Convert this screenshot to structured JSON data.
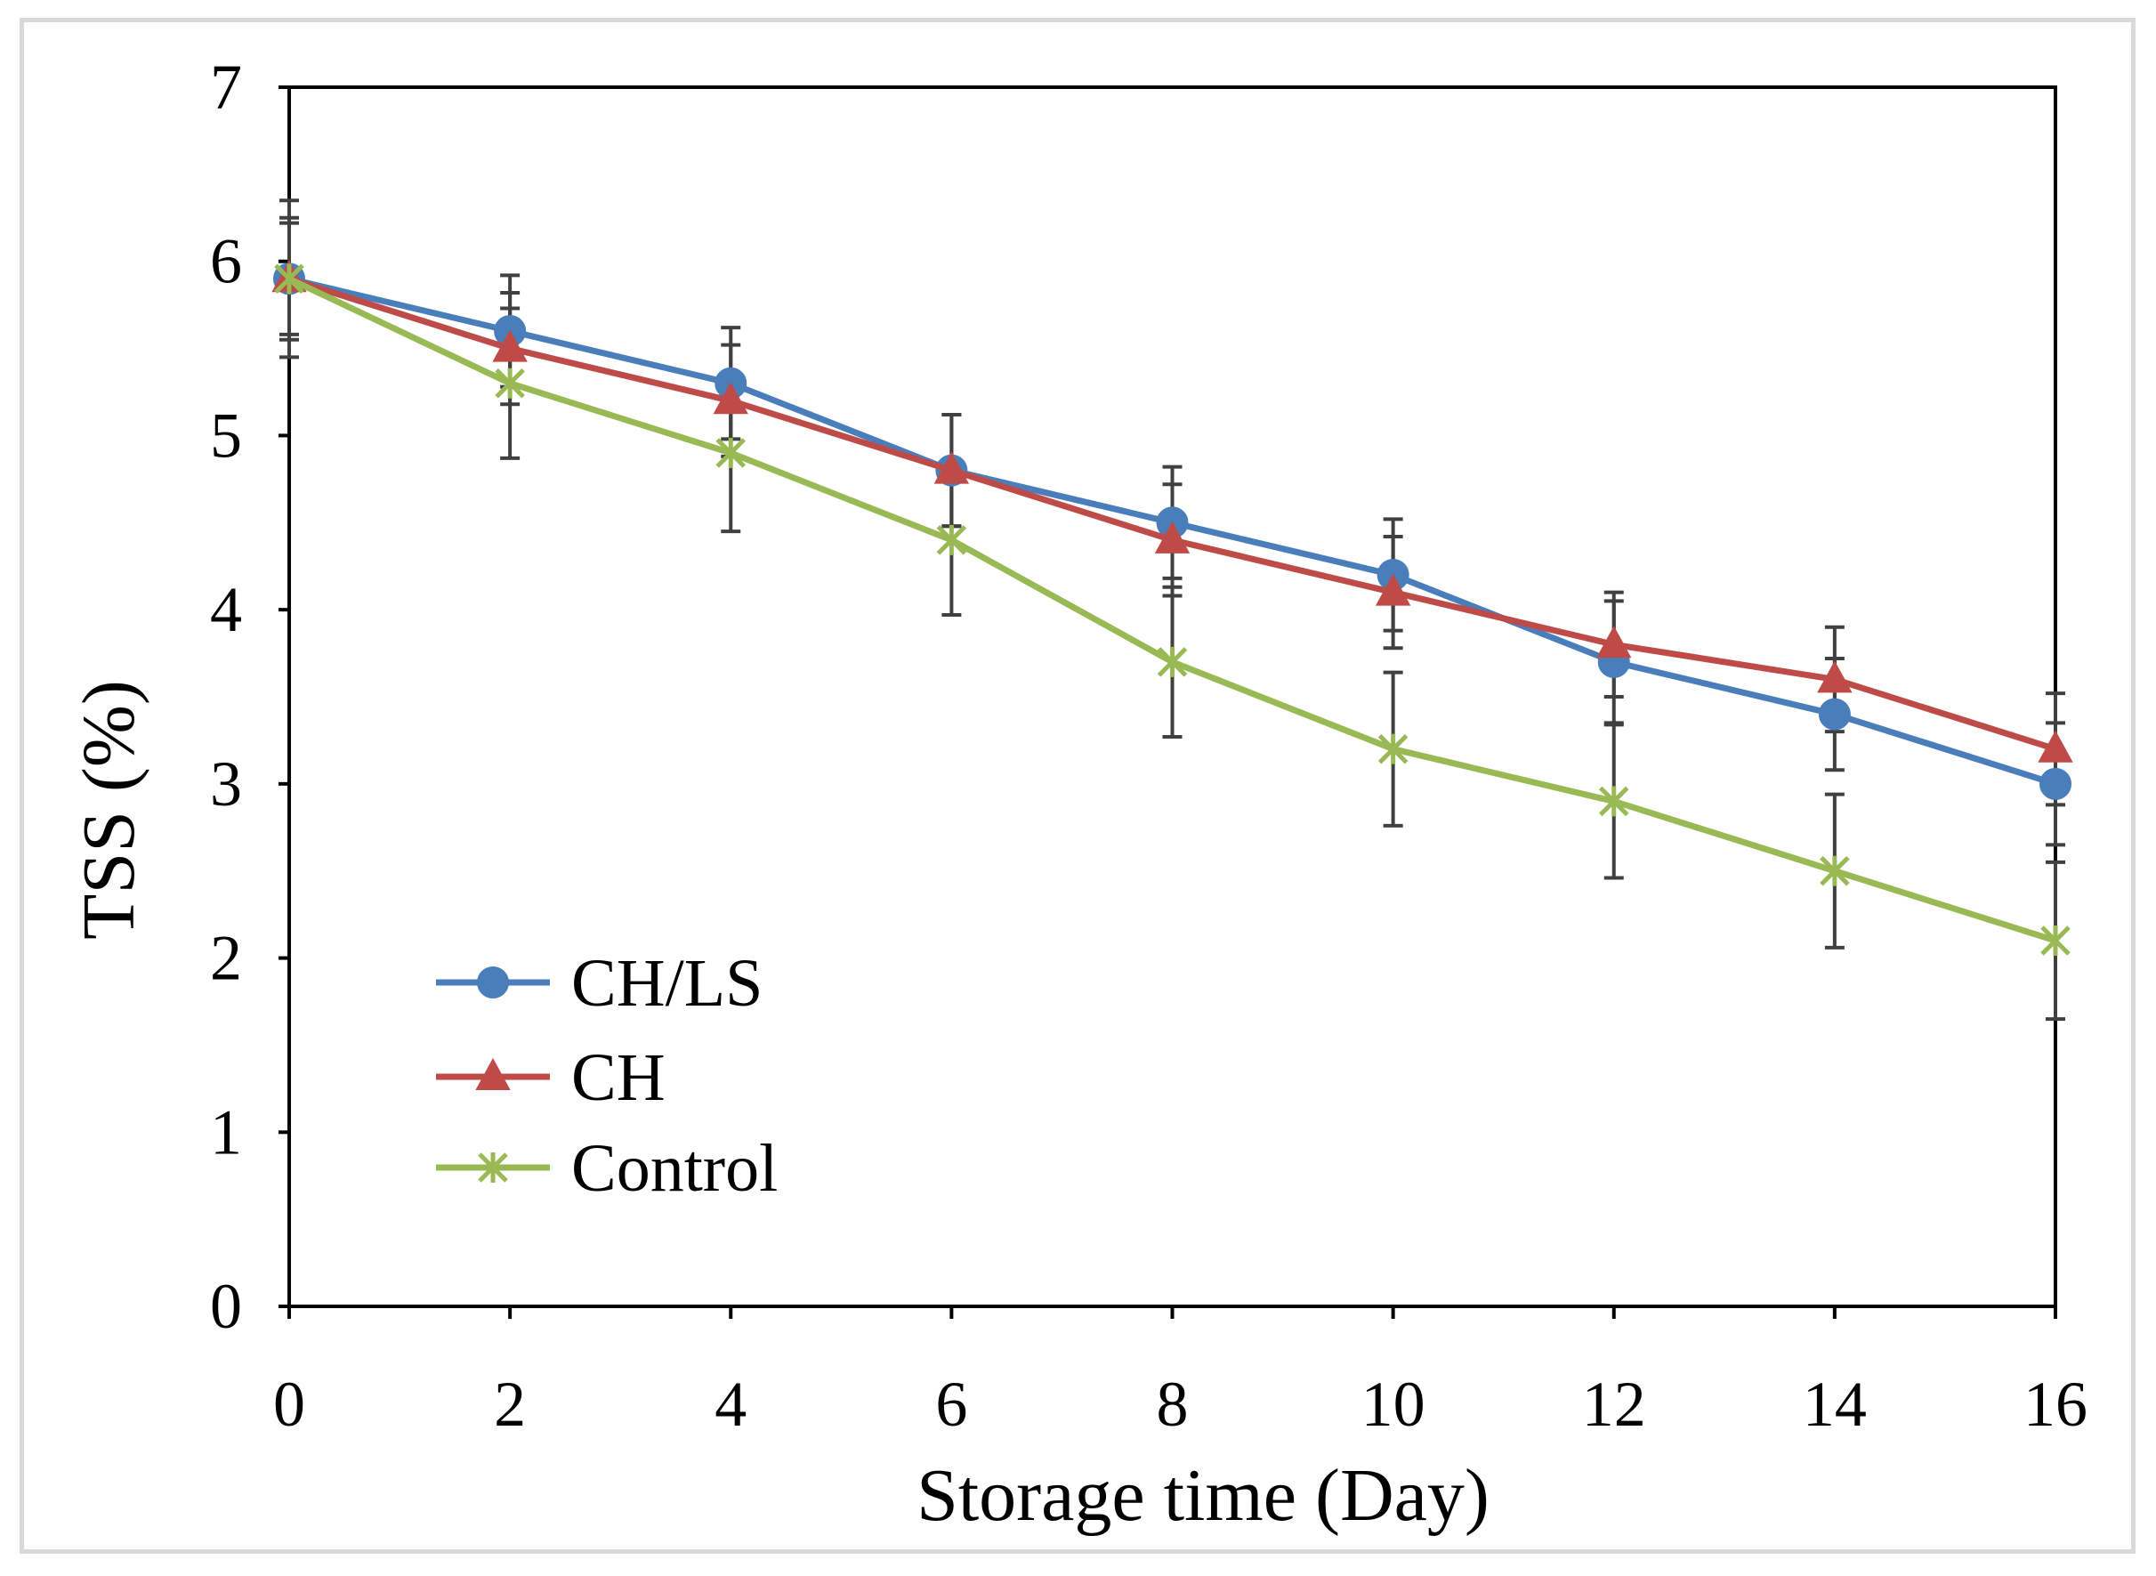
{
  "chart_data": {
    "type": "line",
    "title": "",
    "xlabel": "Storage time (Day)",
    "ylabel": "TSS (%)",
    "x": [
      0,
      2,
      4,
      6,
      8,
      10,
      12,
      14,
      16
    ],
    "xlim": [
      0,
      16
    ],
    "ylim": [
      0,
      7
    ],
    "xticks": [
      "0",
      "2",
      "4",
      "6",
      "8",
      "10",
      "12",
      "14",
      "16"
    ],
    "yticks": [
      "0",
      "1",
      "2",
      "3",
      "4",
      "5",
      "6",
      "7"
    ],
    "grid": false,
    "legend_position": "bottom-left",
    "series": [
      {
        "name": "CH/LS",
        "color": "#4a7ebb",
        "marker": "circle",
        "values": [
          5.9,
          5.6,
          5.3,
          4.8,
          4.5,
          4.2,
          3.7,
          3.4,
          3.0
        ],
        "error": [
          0.35,
          0.32,
          0.32,
          0.32,
          0.32,
          0.32,
          0.35,
          0.32,
          0.35
        ]
      },
      {
        "name": "CH",
        "color": "#be4b48",
        "marker": "triangle",
        "values": [
          5.9,
          5.5,
          5.2,
          4.8,
          4.4,
          4.1,
          3.8,
          3.6,
          3.2
        ],
        "error": [
          0.32,
          0.32,
          0.32,
          0.32,
          0.32,
          0.32,
          0.3,
          0.3,
          0.32
        ]
      },
      {
        "name": "Control",
        "color": "#98b954",
        "marker": "star",
        "values": [
          5.9,
          5.3,
          4.9,
          4.4,
          3.7,
          3.2,
          2.9,
          2.5,
          2.1
        ],
        "error": [
          0.45,
          0.43,
          0.45,
          0.43,
          0.43,
          0.44,
          0.44,
          0.44,
          0.45
        ]
      }
    ]
  }
}
